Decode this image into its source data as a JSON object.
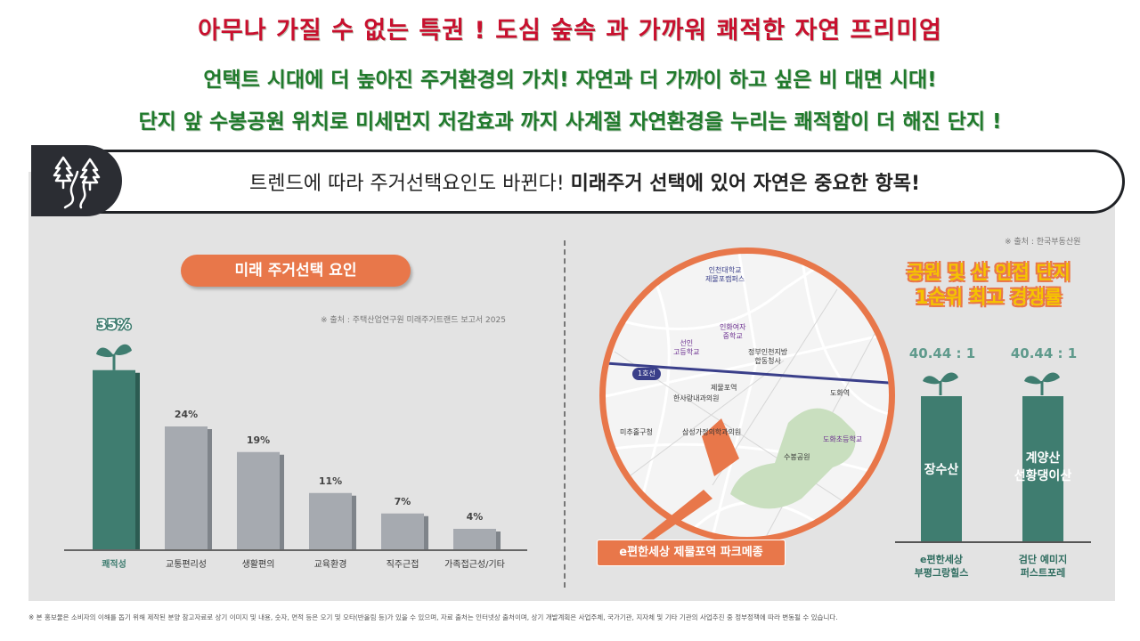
{
  "headline": {
    "line1": "아무나 가질 수 없는 특권 ! 도심 숲속 과 가까워 쾌적한 자연 프리미엄",
    "line2": "언택트 시대에 더 높아진 주거환경의 가치! 자연과 더 가까이 하고 싶은 비 대면 시대!",
    "line3": "단지 앞 수봉공원 위치로 미세먼지 저감효과 까지 사계절 자연환경을 누리는 쾌적함이 더 해진 단지 !"
  },
  "banner": {
    "text_regular": "트렌드에 따라 주거선택요인도 바뀐다!",
    "text_bold": "미래주거 선택에 있어 자연은 중요한 항목!",
    "icon": "trees-path-icon"
  },
  "left_chart": {
    "pill": "미래 주거선택 요인",
    "source": "※ 출처 : 주택산업연구원 미래주거트랜드 보고서 2025",
    "leaf_icon": "sprout-icon"
  },
  "chart_data": {
    "type": "bar",
    "categories": [
      "쾌적성",
      "교통편리성",
      "생활편의",
      "교육환경",
      "직주근접",
      "가족접근성/기타"
    ],
    "values": [
      35,
      24,
      19,
      11,
      7,
      4
    ],
    "value_labels": [
      "35%",
      "24%",
      "19%",
      "11%",
      "7%",
      "4%"
    ],
    "highlight_color": "#3f7d70",
    "bar_color": "#a6aab0",
    "ylim": [
      0,
      40
    ]
  },
  "map": {
    "line_label": "1호선",
    "places": {
      "univ": "인천대학교\n제물포캠퍼스",
      "girls_school": "인화여자\n중학교",
      "sunin": "선인\n고등학교",
      "govt": "정부인천지방\n합동청사",
      "station": "제물포역",
      "hansarang": "한사랑내과의원",
      "dohwa_st": "도화역",
      "michuhol": "미추홀구청",
      "samsung": "삼성가정의학과의원",
      "dohwa_elem": "도화초등학교",
      "park": "수봉공원"
    },
    "project_label": "e편한세상 제물포역 파크메종"
  },
  "right_chart": {
    "source": "※ 출처 : 한국부동산원",
    "title_line1": "공원 및 산 인접 단지",
    "title_line2": "1순위 최고 경쟁률",
    "items": [
      {
        "ratio": "40.44 : 1",
        "bar_text": "장수산",
        "label": "e편한세상\n부평그랑힐스"
      },
      {
        "ratio": "40.44 : 1",
        "bar_text": "계양산\n선황댕이산",
        "label": "검단 예미지\n퍼스트포레"
      }
    ]
  },
  "footnote": "※ 본 홍보물은 소비자의 이해를 돕기 위해 제작된 분양 참고자료로 상기 이미지 및 내용, 숫자, 면적 등은 오기 및 오타(반올림 등)가 있을 수 있으며, 자료 출처는 인터넷상 출처이며, 상기 개발계획은 사업주체, 국가기관, 지자체 및 기타 기관의 사업추진 중 정부정책에 따라 변동될 수 있습니다."
}
